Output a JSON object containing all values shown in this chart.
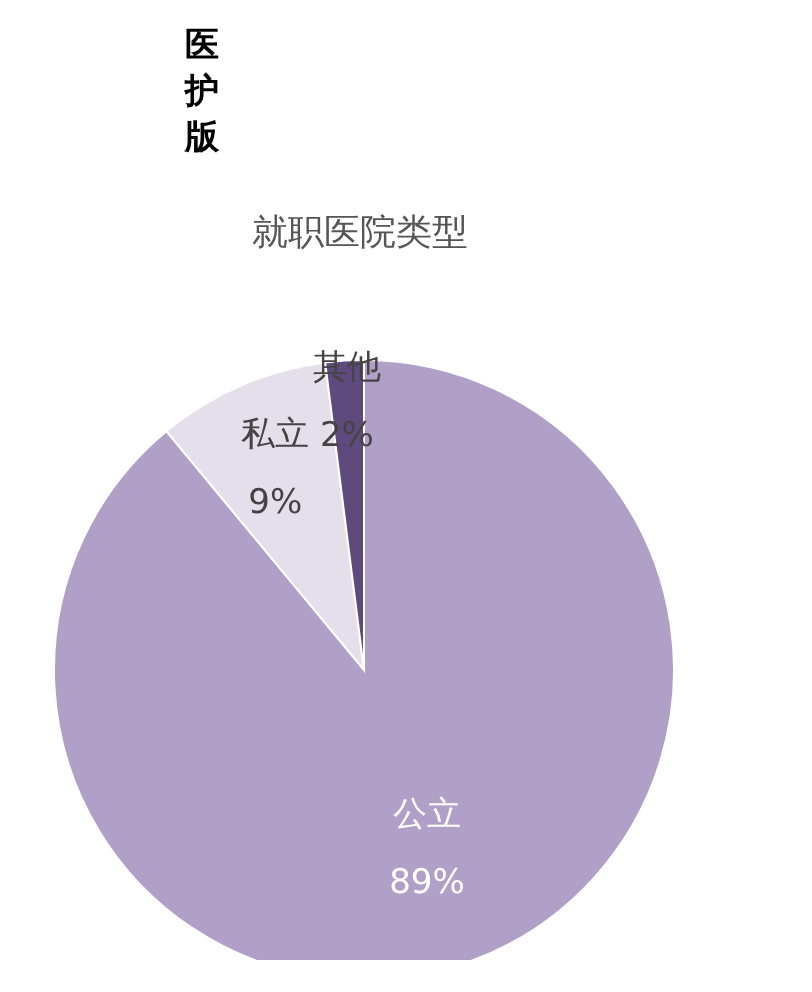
{
  "chart_data": {
    "type": "pie",
    "title": "就职医院类型",
    "subtitle": "医护版",
    "categories": [
      "公立",
      "私立",
      "其他"
    ],
    "values": [
      89,
      9,
      2
    ],
    "colors": [
      "#b09fc6",
      "#e5dfec",
      "#5e4a7c"
    ],
    "value_labels": [
      "89%",
      "9%",
      "2%"
    ]
  }
}
